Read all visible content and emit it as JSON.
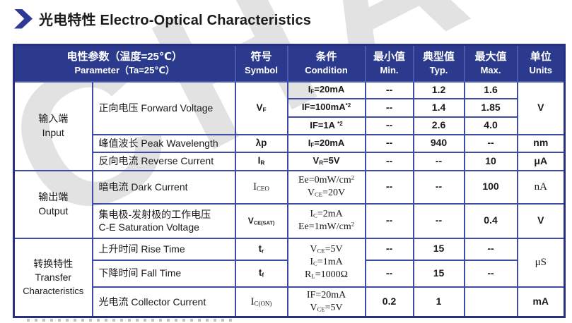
{
  "title": {
    "text": "光电特性 Electro-Optical Characteristics"
  },
  "colors": {
    "header_bg": "#2b3a8d",
    "grid": "#3d4da6",
    "outer_border": "#272f80",
    "accent": "#2e3a96",
    "text": "#1a1a1a",
    "watermark": "#9a9a9a"
  },
  "watermark_text": "CHANE",
  "header": {
    "parameter": {
      "zh": "电性参数（温度=25℃）",
      "en": "Parameter（Ta=25℃）"
    },
    "symbol": {
      "zh": "符号",
      "en": "Symbol"
    },
    "condition": {
      "zh": "条件",
      "en": "Condition"
    },
    "min": {
      "zh": "最小值",
      "en": "Min."
    },
    "typ": {
      "zh": "典型值",
      "en": "Typ."
    },
    "max": {
      "zh": "最大值",
      "en": "Max."
    },
    "units": {
      "zh": "单位",
      "en": "Units"
    }
  },
  "groups": {
    "input": [
      "输入端",
      "Input"
    ],
    "output": [
      "输出端",
      "Output"
    ],
    "transfer": [
      "转换特性",
      "Transfer",
      "Characteristics"
    ]
  },
  "params": {
    "forward_voltage": "正向电压 Forward Voltage",
    "peak_wavelength": "峰值波长 Peak Wavelength",
    "reverse_current": "反向电流 Reverse Current",
    "dark_current": "暗电流 Dark Current",
    "ce_saturation_line1": "集电极-发射极的工作电压",
    "ce_saturation_line2": "C-E Saturation Voltage",
    "rise_time": "上升时间 Rise Time",
    "fall_time": "下降时间 Fall Time",
    "collector_current": "光电流 Collector Current"
  },
  "symbols": {
    "vf": [
      {
        "t": "V"
      },
      {
        "t": "F",
        "fmt": "sub"
      }
    ],
    "lambda_p": [
      {
        "t": "λp"
      }
    ],
    "ir": [
      {
        "t": "I"
      },
      {
        "t": "R",
        "fmt": "sub"
      }
    ],
    "iceo": [
      {
        "t": "I"
      },
      {
        "t": "CEO",
        "fmt": "sub"
      }
    ],
    "vcesat": [
      {
        "t": "V"
      },
      {
        "t": "CE(SAT)",
        "fmt": "sub"
      }
    ],
    "tr": [
      {
        "t": "t"
      },
      {
        "t": "r",
        "fmt": "sub"
      }
    ],
    "tf": [
      {
        "t": "t"
      },
      {
        "t": "f",
        "fmt": "sub"
      }
    ],
    "icon": [
      {
        "t": "I"
      },
      {
        "t": "C(ON)",
        "fmt": "sub"
      }
    ]
  },
  "conditions": {
    "fv_if20": [
      {
        "t": "I"
      },
      {
        "t": "F",
        "fmt": "sub"
      },
      {
        "t": "=20mA"
      }
    ],
    "fv_if100": [
      {
        "t": "IF=100mA"
      },
      {
        "t": "*2",
        "fmt": "sup"
      }
    ],
    "fv_if1a": [
      {
        "t": "IF=1A "
      },
      {
        "t": "*2",
        "fmt": "sup"
      }
    ],
    "peak_if20": [
      {
        "t": "I"
      },
      {
        "t": "F",
        "fmt": "sub"
      },
      {
        "t": "=20mA"
      }
    ],
    "rev_vr5": [
      {
        "t": "V"
      },
      {
        "t": "R",
        "fmt": "sub"
      },
      {
        "t": "=5V"
      }
    ],
    "dark_line1": [
      {
        "t": "Ee=0mW/cm"
      },
      {
        "t": "2",
        "fmt": "sup"
      }
    ],
    "dark_line2": [
      {
        "t": "V"
      },
      {
        "t": "CE",
        "fmt": "sub"
      },
      {
        "t": "=20V"
      }
    ],
    "sat_line1": [
      {
        "t": "I"
      },
      {
        "t": "C",
        "fmt": "sub"
      },
      {
        "t": "=2mA"
      }
    ],
    "sat_line2": [
      {
        "t": "Ee=1mW/cm"
      },
      {
        "t": "2",
        "fmt": "sup"
      }
    ],
    "rf_line1": [
      {
        "t": "V"
      },
      {
        "t": "CE",
        "fmt": "sub"
      },
      {
        "t": "=5V"
      }
    ],
    "rf_line2": [
      {
        "t": "I"
      },
      {
        "t": "C",
        "fmt": "sub"
      },
      {
        "t": "=1mA"
      }
    ],
    "rf_line3": [
      {
        "t": "R"
      },
      {
        "t": "L",
        "fmt": "sub"
      },
      {
        "t": "=1000Ω"
      }
    ],
    "coll_line1": [
      {
        "t": "IF=20mA"
      }
    ],
    "coll_line2": [
      {
        "t": "V"
      },
      {
        "t": "CE",
        "fmt": "sub"
      },
      {
        "t": "=5V"
      }
    ]
  },
  "values": {
    "fv1": {
      "min": "--",
      "typ": "1.2",
      "max": "1.6"
    },
    "fv2": {
      "min": "--",
      "typ": "1.4",
      "max": "1.85"
    },
    "fv3": {
      "min": "--",
      "typ": "2.6",
      "max": "4.0"
    },
    "peak": {
      "min": "--",
      "typ": "940",
      "max": "--"
    },
    "rev": {
      "min": "--",
      "typ": "--",
      "max": "10"
    },
    "dark": {
      "min": "--",
      "typ": "--",
      "max": "100"
    },
    "sat": {
      "min": "--",
      "typ": "--",
      "max": "0.4"
    },
    "rise": {
      "min": "--",
      "typ": "15",
      "max": "--"
    },
    "fall": {
      "min": "--",
      "typ": "15",
      "max": "--"
    },
    "coll": {
      "min": "0.2",
      "typ": "1",
      "max": ""
    }
  },
  "units": {
    "fv": "V",
    "peak": "nm",
    "rev": "μA",
    "dark": "nA",
    "sat": "V",
    "risefall": "μS",
    "coll": "mA"
  }
}
